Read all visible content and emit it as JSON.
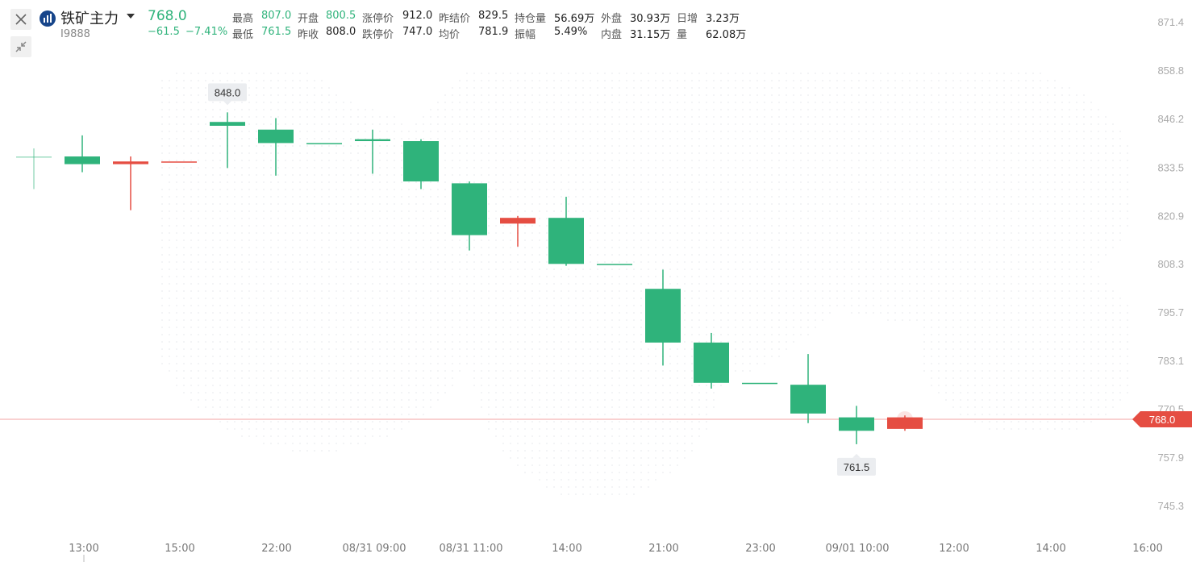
{
  "header": {
    "name": "铁矿主力",
    "code": "I9888",
    "price": "768.0",
    "change": "−61.5",
    "change_pct": "−7.41%",
    "stats": [
      {
        "label": "最高",
        "value": "807.0",
        "color": "green"
      },
      {
        "label": "最低",
        "value": "761.5",
        "color": "green"
      },
      {
        "label": "开盘",
        "value": "800.5",
        "color": "green"
      },
      {
        "label": "昨收",
        "value": "808.0",
        "color": "normal"
      },
      {
        "label": "涨停价",
        "value": "912.0",
        "color": "normal"
      },
      {
        "label": "跌停价",
        "value": "747.0",
        "color": "normal"
      },
      {
        "label": "昨结价",
        "value": "829.5",
        "color": "normal"
      },
      {
        "label": "均价",
        "value": "781.9",
        "color": "normal"
      },
      {
        "label": "持仓量",
        "value": "56.69万",
        "color": "normal"
      },
      {
        "label": "振幅",
        "value": "5.49%",
        "color": "normal"
      },
      {
        "label": "外盘",
        "value": "30.93万",
        "color": "normal"
      },
      {
        "label": "内盘",
        "value": "31.15万",
        "color": "normal"
      },
      {
        "label": "日增",
        "value": "3.23万",
        "color": "normal"
      },
      {
        "label": "量",
        "value": "62.08万",
        "color": "normal"
      }
    ]
  },
  "colors": {
    "up": "#e54d42",
    "down": "#2fb37b",
    "axis_text": "#aaaaaa",
    "current_line": "#f3a3a3"
  },
  "chart_data": {
    "type": "candlestick",
    "y_ticks": [
      "871.4",
      "858.8",
      "846.2",
      "833.5",
      "820.9",
      "808.3",
      "795.7",
      "783.1",
      "770.5",
      "757.9",
      "745.3"
    ],
    "ylim": [
      745.3,
      871.4
    ],
    "x_tick_labels": [
      "13:00",
      "15:00",
      "22:00",
      "08/31 09:00",
      "08/31 11:00",
      "14:00",
      "21:00",
      "23:00",
      "09/01 10:00",
      "12:00",
      "14:00",
      "16:00"
    ],
    "candles": [
      {
        "o": 836.5,
        "c": 836.5,
        "h": 838.6,
        "l": 828.0,
        "faded": true
      },
      {
        "o": 836.5,
        "c": 834.5,
        "h": 842.0,
        "l": 832.4
      },
      {
        "o": 834.5,
        "c": 835.2,
        "h": 836.5,
        "l": 822.5
      },
      {
        "o": 835.2,
        "c": 835.2,
        "h": 835.2,
        "l": 835.2
      },
      {
        "o": 845.5,
        "c": 844.5,
        "h": 848.0,
        "l": 833.5
      },
      {
        "o": 843.5,
        "c": 840.0,
        "h": 846.5,
        "l": 831.5
      },
      {
        "o": 840.0,
        "c": 840.0,
        "h": 840.0,
        "l": 840.0
      },
      {
        "o": 841.0,
        "c": 840.5,
        "h": 843.5,
        "l": 832.0
      },
      {
        "o": 840.5,
        "c": 830.0,
        "h": 841.0,
        "l": 828.0
      },
      {
        "o": 829.5,
        "c": 816.0,
        "h": 830.0,
        "l": 812.0
      },
      {
        "o": 819.0,
        "c": 820.5,
        "h": 821.0,
        "l": 813.0
      },
      {
        "o": 820.5,
        "c": 808.5,
        "h": 826.0,
        "l": 808.0
      },
      {
        "o": 808.5,
        "c": 808.5,
        "h": 808.5,
        "l": 808.5
      },
      {
        "o": 802.0,
        "c": 788.0,
        "h": 807.0,
        "l": 782.0
      },
      {
        "o": 788.0,
        "c": 777.5,
        "h": 790.5,
        "l": 776.0
      },
      {
        "o": 777.5,
        "c": 777.5,
        "h": 777.5,
        "l": 777.5
      },
      {
        "o": 777.0,
        "c": 769.5,
        "h": 785.0,
        "l": 767.0
      },
      {
        "o": 768.5,
        "c": 765.0,
        "h": 771.5,
        "l": 761.5
      },
      {
        "o": 765.5,
        "c": 768.5,
        "h": 769.0,
        "l": 765.0
      }
    ],
    "max_label": "848.0",
    "min_label": "761.5",
    "current_price": 768.0,
    "current_label": "768.0",
    "grid": false,
    "legend": "none"
  }
}
